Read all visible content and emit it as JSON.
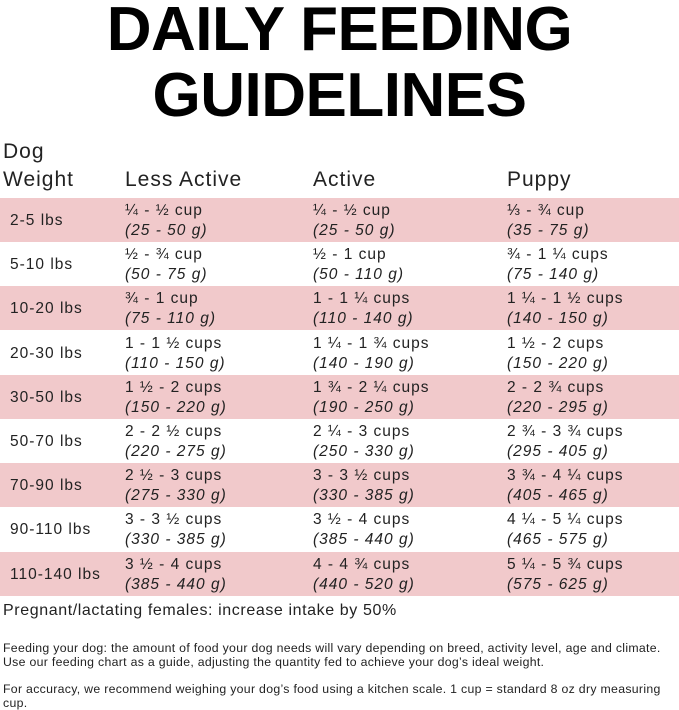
{
  "header": {
    "title": [
      "DAILY FEEDING",
      "GUIDELINES"
    ]
  },
  "table": {
    "columns": [
      "Dog Weight",
      "Less Active",
      "Active",
      "Puppy"
    ],
    "rows": [
      {
        "weight": "2-5 lbs",
        "cells": [
          {
            "amount": "¼ - ½ cup",
            "grams": "(25 - 50 g)"
          },
          {
            "amount": "¼ - ½ cup",
            "grams": "(25 - 50 g)"
          },
          {
            "amount": "⅓ - ¾ cup",
            "grams": "(35 - 75 g)"
          }
        ]
      },
      {
        "weight": "5-10 lbs",
        "cells": [
          {
            "amount": "½ - ¾ cup",
            "grams": "(50 - 75 g)"
          },
          {
            "amount": "½ - 1 cup",
            "grams": "(50 - 110 g)"
          },
          {
            "amount": "¾ - 1 ¼ cups",
            "grams": "(75 - 140 g)"
          }
        ]
      },
      {
        "weight": "10-20 lbs",
        "cells": [
          {
            "amount": "¾ - 1 cup",
            "grams": "(75 - 110 g)"
          },
          {
            "amount": "1 - 1 ¼ cups",
            "grams": "(110 - 140 g)"
          },
          {
            "amount": "1 ¼ - 1 ½ cups",
            "grams": "(140 - 150 g)"
          }
        ]
      },
      {
        "weight": "20-30 lbs",
        "cells": [
          {
            "amount": "1 - 1 ½ cups",
            "grams": "(110 - 150 g)"
          },
          {
            "amount": "1 ¼ - 1 ¾ cups",
            "grams": "(140 - 190 g)"
          },
          {
            "amount": "1 ½ - 2 cups",
            "grams": "(150 - 220 g)"
          }
        ]
      },
      {
        "weight": "30-50 lbs",
        "cells": [
          {
            "amount": "1 ½ - 2 cups",
            "grams": "(150 - 220 g)"
          },
          {
            "amount": "1 ¾ - 2 ¼ cups",
            "grams": "(190 - 250 g)"
          },
          {
            "amount": "2 - 2 ¾ cups",
            "grams": "(220 - 295 g)"
          }
        ]
      },
      {
        "weight": "50-70 lbs",
        "cells": [
          {
            "amount": "2 - 2 ½ cups",
            "grams": "(220 - 275 g)"
          },
          {
            "amount": "2 ¼ - 3 cups",
            "grams": "(250 - 330 g)"
          },
          {
            "amount": "2 ¾ - 3 ¾ cups",
            "grams": "(295 - 405 g)"
          }
        ]
      },
      {
        "weight": "70-90 lbs",
        "cells": [
          {
            "amount": "2 ½ - 3 cups",
            "grams": "(275 - 330 g)"
          },
          {
            "amount": "3 - 3 ½ cups",
            "grams": "(330 - 385 g)"
          },
          {
            "amount": "3 ¾ - 4 ¼ cups",
            "grams": "(405 - 465 g)"
          }
        ]
      },
      {
        "weight": "90-110 lbs",
        "cells": [
          {
            "amount": "3 - 3 ½ cups",
            "grams": "(330 - 385 g)"
          },
          {
            "amount": "3 ½ - 4 cups",
            "grams": "(385 - 440 g)"
          },
          {
            "amount": "4 ¼ - 5 ¼ cups",
            "grams": "(465 - 575 g)"
          }
        ]
      },
      {
        "weight": "110-140 lbs",
        "cells": [
          {
            "amount": "3 ½ - 4 cups",
            "grams": "(385 - 440 g)"
          },
          {
            "amount": "4 - 4 ¾ cups",
            "grams": "(440 - 520 g)"
          },
          {
            "amount": "5 ¼ - 5 ¾ cups",
            "grams": "(575 - 625 g)"
          }
        ]
      }
    ]
  },
  "notes": [
    "Pregnant/lactating females: increase intake by 50%",
    "Feeding your dog: the amount of food your dog needs will vary depending on breed, activity level, age and climate. Use our feeding chart as a guide, adjusting the quantity fed to achieve your dog’s ideal weight.",
    "For accuracy, we recommend weighing your dog’s food using a kitchen scale. 1 cup = standard 8 oz dry measuring cup."
  ]
}
